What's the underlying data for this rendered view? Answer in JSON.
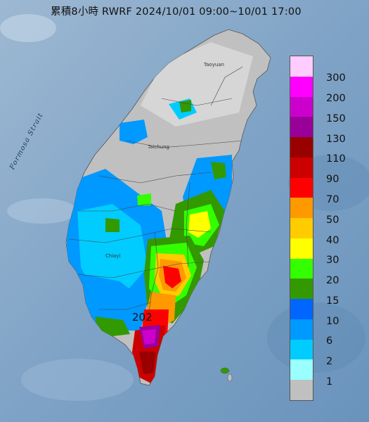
{
  "title": "累積8小時 RWRF 2024/10/01 09:00~10/01 17:00",
  "sea_label": "Formosa Strait",
  "places": [
    "Taoyuan",
    "Taichung",
    "Chiayi"
  ],
  "max_value_label": "202",
  "legend": {
    "levels": [
      {
        "label": "300",
        "color": "#ffccff"
      },
      {
        "label": "200",
        "color": "#ff00ff"
      },
      {
        "label": "150",
        "color": "#cc00cc"
      },
      {
        "label": "130",
        "color": "#990099"
      },
      {
        "label": "110",
        "color": "#990000"
      },
      {
        "label": "90",
        "color": "#cc0000"
      },
      {
        "label": "70",
        "color": "#ff0000"
      },
      {
        "label": "50",
        "color": "#ff9900"
      },
      {
        "label": "40",
        "color": "#ffcc00"
      },
      {
        "label": "30",
        "color": "#ffff00"
      },
      {
        "label": "20",
        "color": "#33ff00"
      },
      {
        "label": "15",
        "color": "#339900"
      },
      {
        "label": "10",
        "color": "#0066ff"
      },
      {
        "label": "6",
        "color": "#0099ff"
      },
      {
        "label": "2",
        "color": "#00ccff"
      },
      {
        "label": "1",
        "color": "#99ffff"
      },
      {
        "label": "",
        "color": "#c0c0c0"
      }
    ]
  },
  "colors": {
    "sea": "#7fa7c9",
    "land_no_rain": "#c0c0c0"
  }
}
